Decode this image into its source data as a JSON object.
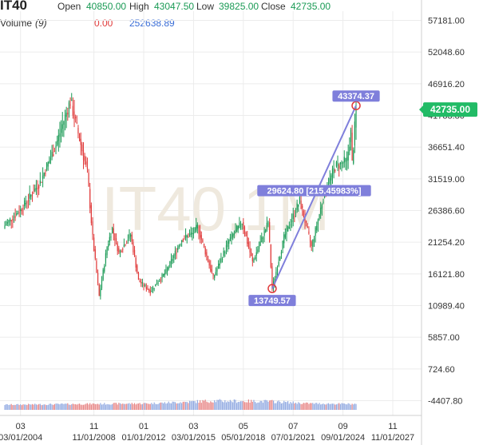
{
  "header": {
    "symbol": "IT40",
    "open_label": "Open",
    "open_value": "40850.00",
    "high_label": "High",
    "high_value": "43047.50",
    "low_label": "Low",
    "low_value": "39825.00",
    "close_label": "Close",
    "close_value": "42735.00",
    "volume_label": "Volume",
    "volume_period": "(9)",
    "volume_value1": "0.00",
    "volume_value2": "252638.89"
  },
  "watermark": "IT40,1M",
  "colors": {
    "up": "#1a9a55",
    "down": "#e03a3a",
    "last_price": "#22bb66",
    "trendline": "#7f7fdb",
    "volume": "#6f8fd8",
    "volume_down": "#e06060",
    "grid": "#ececec",
    "watermark": "#efe9de"
  },
  "chart_data": {
    "type": "candlestick",
    "price_axis": {
      "ticks": [
        "57181.00",
        "52048.60",
        "46916.20",
        "41783.80",
        "36651.40",
        "31519.00",
        "26386.60",
        "21254.20",
        "16121.80",
        "10989.40",
        "5857.00",
        "724.60",
        "-4407.80"
      ],
      "ylim": [
        -4407.8,
        57181.0
      ]
    },
    "time_axis": {
      "top_labels": [
        "03",
        "11",
        "01",
        "03",
        "05",
        "07",
        "09",
        "11"
      ],
      "bottom_labels": [
        "03/01/2004",
        "11/01/2008",
        "01/01/2012",
        "03/01/2015",
        "05/01/2018",
        "07/01/2021",
        "09/01/2024",
        "11/01/2027"
      ]
    },
    "last_price": "42735.00",
    "trendline": {
      "start": {
        "date": "2020-03",
        "value": 13749.57,
        "label": "13749.57"
      },
      "end": {
        "date": "2025-07",
        "value": 43374.37,
        "label": "43374.37"
      },
      "mid_label": "29624.80 [215.45983%]"
    },
    "price_path": [
      [
        "2003-03",
        24000
      ],
      [
        "2004-03",
        26500
      ],
      [
        "2005-06",
        31000
      ],
      [
        "2006-06",
        37000
      ],
      [
        "2007-05",
        44200
      ],
      [
        "2007-12",
        38000
      ],
      [
        "2008-06",
        32500
      ],
      [
        "2008-10",
        22000
      ],
      [
        "2009-03",
        12500
      ],
      [
        "2009-09",
        20500
      ],
      [
        "2010-01",
        23500
      ],
      [
        "2010-06",
        19500
      ],
      [
        "2011-03",
        22500
      ],
      [
        "2011-09",
        15000
      ],
      [
        "2012-06",
        13300
      ],
      [
        "2013-06",
        16500
      ],
      [
        "2014-06",
        21700
      ],
      [
        "2015-03",
        22800
      ],
      [
        "2015-06",
        23800
      ],
      [
        "2016-06",
        15500
      ],
      [
        "2017-06",
        21500
      ],
      [
        "2018-04",
        24500
      ],
      [
        "2018-12",
        18000
      ],
      [
        "2019-12",
        24500
      ],
      [
        "2020-03",
        13750
      ],
      [
        "2020-12",
        22000
      ],
      [
        "2021-12",
        28000
      ],
      [
        "2022-09",
        20500
      ],
      [
        "2023-06",
        28500
      ],
      [
        "2024-03",
        33500
      ],
      [
        "2024-12",
        34500
      ],
      [
        "2025-03",
        39000
      ],
      [
        "2025-04",
        34000
      ],
      [
        "2025-07",
        42735
      ]
    ],
    "volume_level": [
      [
        "2003-03",
        0.3
      ],
      [
        "2007-06",
        0.4
      ],
      [
        "2012-06",
        0.5
      ],
      [
        "2016-06",
        0.9
      ],
      [
        "2020-03",
        0.8
      ],
      [
        "2022-06",
        0.5
      ],
      [
        "2025-07",
        0.4
      ]
    ]
  }
}
